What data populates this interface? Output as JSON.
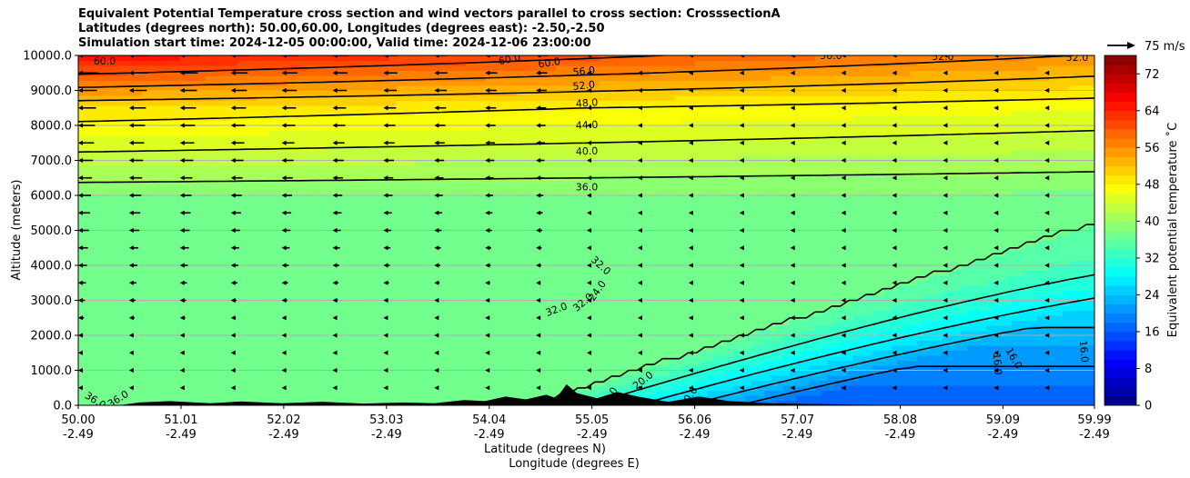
{
  "title": {
    "line1": "Equivalent Potential Temperature cross section and wind vectors parallel to cross section: CrosssectionA",
    "line2": "Latitudes (degrees north): 50.00,60.00, Longitudes (degrees east): -2.50,-2.50",
    "line3": "Simulation start time: 2024-12-05 00:00:00, Valid time: 2024-12-06 23:00:00"
  },
  "colors": {
    "contour": "#000000",
    "terrain": "#000000",
    "grid": "#b0b0b0"
  },
  "quiver_key": {
    "label": "75 m/s",
    "speed": 75
  },
  "chart_data": {
    "type": "heatmap",
    "description_type": "filled contour cross section with wind vectors",
    "ylabel": "Altitude (meters)",
    "xlabel_line1": "Latitude (degrees N)",
    "xlabel_line2": "Longitude (degrees E)",
    "x_range": [
      50.0,
      59.99
    ],
    "y_range": [
      0,
      10000
    ],
    "x_ticks": [
      {
        "lat": "50.00",
        "lon": "-2.49",
        "value": 50.0
      },
      {
        "lat": "51.01",
        "lon": "-2.49",
        "value": 51.01
      },
      {
        "lat": "52.02",
        "lon": "-2.49",
        "value": 52.02
      },
      {
        "lat": "53.03",
        "lon": "-2.49",
        "value": 53.03
      },
      {
        "lat": "54.04",
        "lon": "-2.49",
        "value": 54.04
      },
      {
        "lat": "55.05",
        "lon": "-2.49",
        "value": 55.05
      },
      {
        "lat": "56.06",
        "lon": "-2.49",
        "value": 56.06
      },
      {
        "lat": "57.07",
        "lon": "-2.49",
        "value": 57.07
      },
      {
        "lat": "58.08",
        "lon": "-2.49",
        "value": 58.08
      },
      {
        "lat": "59.09",
        "lon": "-2.49",
        "value": 59.09
      },
      {
        "lat": "59.99",
        "lon": "-2.49",
        "value": 59.99
      }
    ],
    "y_ticks": [
      "0.0",
      "1000.0",
      "2000.0",
      "3000.0",
      "4000.0",
      "5000.0",
      "6000.0",
      "7000.0",
      "8000.0",
      "9000.0",
      "10000.0"
    ],
    "y_tick_values": [
      0,
      1000,
      2000,
      3000,
      4000,
      5000,
      6000,
      7000,
      8000,
      9000,
      10000
    ],
    "grid": "horizontal",
    "colorbar": {
      "label": "Equivalent potential temperature ˚C",
      "ticks": [
        "0",
        "8",
        "16",
        "24",
        "32",
        "40",
        "48",
        "56",
        "64",
        "72"
      ],
      "tick_values": [
        0,
        8,
        16,
        24,
        32,
        40,
        48,
        56,
        64,
        72
      ],
      "range": [
        0,
        76
      ],
      "colormap": "jet"
    },
    "contour_labels": [
      {
        "text": "60.0",
        "x": 50.26,
        "y": 9850,
        "rot": 0
      },
      {
        "text": "60.0",
        "x": 54.24,
        "y": 9900,
        "rot": -12
      },
      {
        "text": "60.0",
        "x": 54.63,
        "y": 9800,
        "rot": -8
      },
      {
        "text": "56.0",
        "x": 54.97,
        "y": 9560,
        "rot": -6
      },
      {
        "text": "52.0",
        "x": 54.97,
        "y": 9150,
        "rot": -6
      },
      {
        "text": "48.0",
        "x": 55.0,
        "y": 8650,
        "rot": -4
      },
      {
        "text": "44.0",
        "x": 55.0,
        "y": 8020,
        "rot": -3
      },
      {
        "text": "40.0",
        "x": 55.0,
        "y": 7270,
        "rot": -2
      },
      {
        "text": "36.0",
        "x": 55.0,
        "y": 6250,
        "rot": 0
      },
      {
        "text": "32.0",
        "x": 55.14,
        "y": 4000,
        "rot": 42
      },
      {
        "text": "32.0",
        "x": 54.7,
        "y": 2750,
        "rot": -20
      },
      {
        "text": "32.0",
        "x": 54.96,
        "y": 2950,
        "rot": -40
      },
      {
        "text": "24.0",
        "x": 55.1,
        "y": 3280,
        "rot": -55
      },
      {
        "text": "36.0",
        "x": 50.17,
        "y": 150,
        "rot": 32
      },
      {
        "text": "36.0",
        "x": 50.39,
        "y": 190,
        "rot": -32
      },
      {
        "text": "20.0",
        "x": 55.55,
        "y": 720,
        "rot": -38
      },
      {
        "text": "20.0",
        "x": 55.22,
        "y": 220,
        "rot": -60
      },
      {
        "text": "20.0",
        "x": 56.0,
        "y": 240,
        "rot": -55
      },
      {
        "text": "16.0",
        "x": 59.04,
        "y": 1180,
        "rot": 85
      },
      {
        "text": "16.0",
        "x": 59.2,
        "y": 1350,
        "rot": 60
      },
      {
        "text": "16.0",
        "x": 59.89,
        "y": 1540,
        "rot": 85
      },
      {
        "text": "56.0",
        "x": 57.4,
        "y": 10000,
        "rot": 0
      },
      {
        "text": "52.0",
        "x": 58.5,
        "y": 9970,
        "rot": 0
      },
      {
        "text": "52.0",
        "x": 59.82,
        "y": 9950,
        "rot": 0
      }
    ],
    "contour_levels": [
      60,
      56,
      52,
      48,
      44,
      40,
      36,
      32,
      28,
      24,
      20,
      16
    ]
  }
}
